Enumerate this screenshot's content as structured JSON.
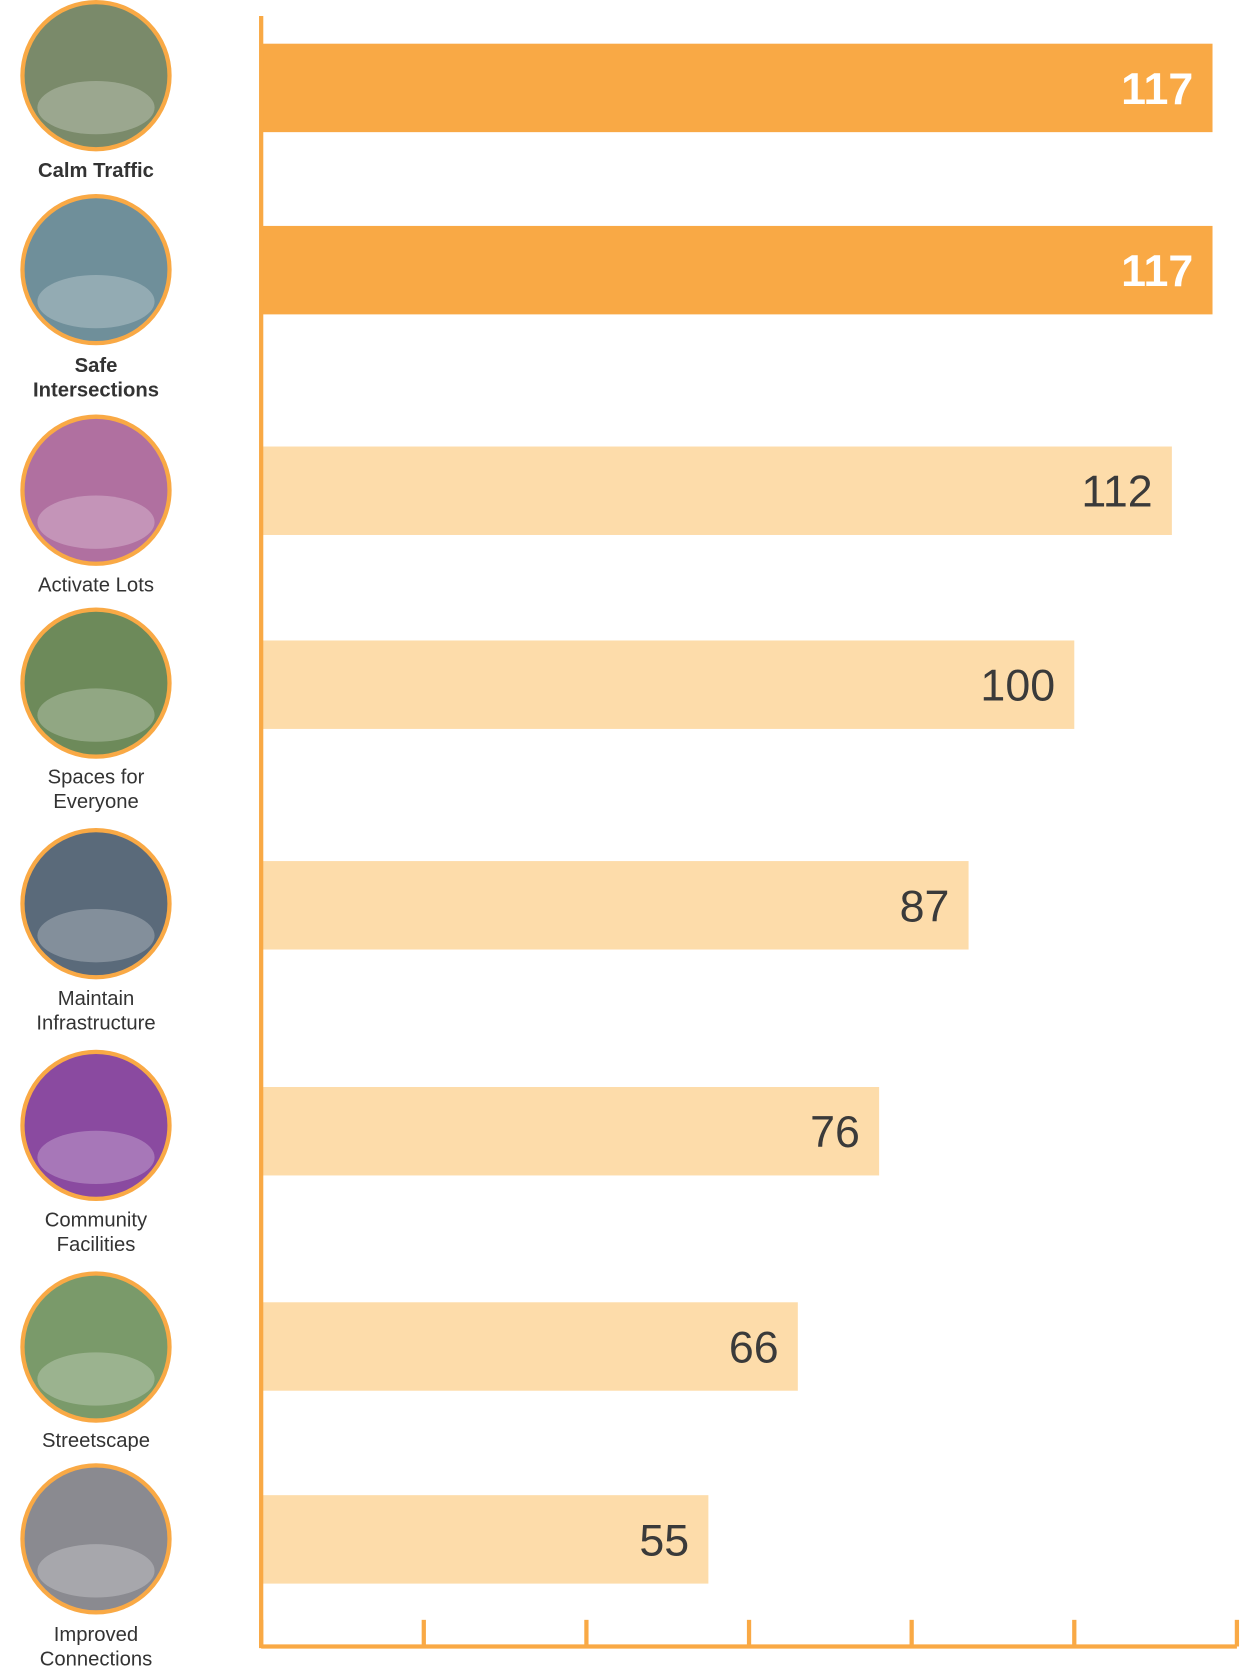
{
  "chart_data": {
    "type": "bar",
    "orientation": "horizontal",
    "categories": [
      "Calm Traffic",
      "Safe Intersections",
      "Activate Lots",
      "Spaces for Everyone",
      "Maintain Infrastructure",
      "Community Facilities",
      "Streetscape",
      "Improved Connections"
    ],
    "values": [
      117,
      117,
      112,
      100,
      87,
      76,
      66,
      55
    ],
    "colors": [
      "#f9a945",
      "#f9a945",
      "#fddcaa",
      "#fddcaa",
      "#fddcaa",
      "#fddcaa",
      "#fddcaa",
      "#fddcaa"
    ],
    "label_colors": [
      "#ffffff",
      "#ffffff",
      "#3a3a3a",
      "#3a3a3a",
      "#3a3a3a",
      "#3a3a3a",
      "#3a3a3a",
      "#3a3a3a"
    ],
    "axis_color": "#f9a945",
    "xlim": [
      0,
      120
    ],
    "xticks": [
      0,
      20,
      40,
      60,
      80,
      100,
      120
    ]
  }
}
